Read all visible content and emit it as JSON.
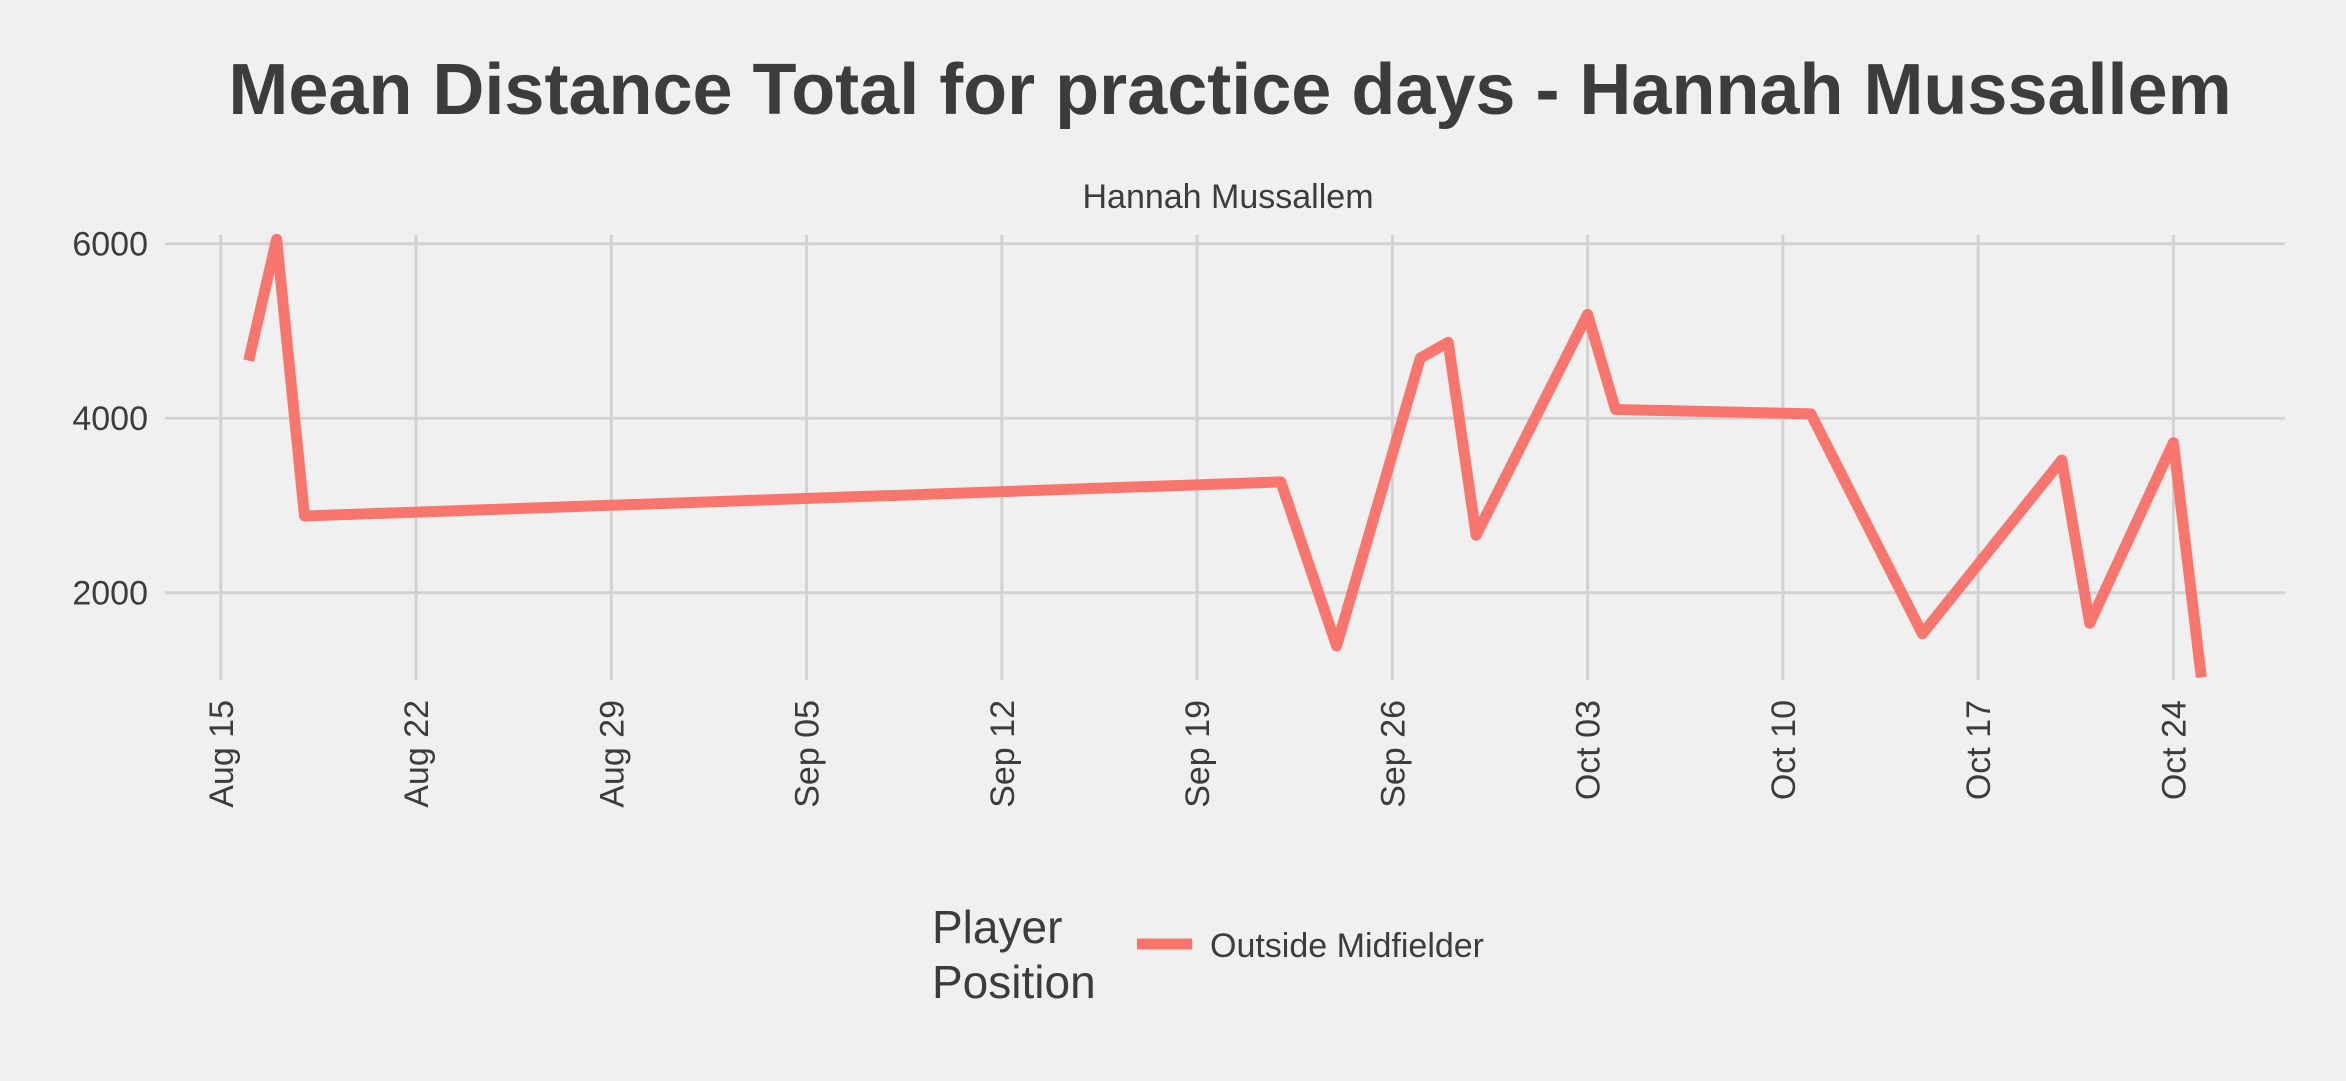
{
  "chart_data": {
    "type": "line",
    "title": "Mean Distance Total for practice days -  Hannah Mussallem",
    "subtitle": "Hannah Mussallem",
    "xlabel": "",
    "ylabel": "",
    "x_type": "date",
    "x_ticks": [
      "2022-08-15",
      "2022-08-22",
      "2022-08-29",
      "2022-09-05",
      "2022-09-12",
      "2022-09-19",
      "2022-09-26",
      "2022-10-03",
      "2022-10-10",
      "2022-10-17",
      "2022-10-24"
    ],
    "x_tick_labels": [
      "Aug 15",
      "Aug 22",
      "Aug 29",
      "Sep 05",
      "Sep 12",
      "Sep 19",
      "Sep 26",
      "Oct 03",
      "Oct 10",
      "Oct 17",
      "Oct 24"
    ],
    "y_ticks": [
      2000,
      4000,
      6000
    ],
    "y_tick_labels": [
      "2000",
      "4000",
      "6000"
    ],
    "xlim": [
      "2022-08-13",
      "2022-10-28"
    ],
    "ylim": [
      1000,
      6100
    ],
    "grid": true,
    "legend": {
      "title": [
        "Player",
        "Position"
      ],
      "placement": "bottom"
    },
    "series": [
      {
        "name": "Outside Midfielder",
        "color": "#f8766d",
        "points": [
          {
            "x": "2022-08-16",
            "y": 4660
          },
          {
            "x": "2022-08-17",
            "y": 6050
          },
          {
            "x": "2022-08-18",
            "y": 2880
          },
          {
            "x": "2022-09-22",
            "y": 3270
          },
          {
            "x": "2022-09-24",
            "y": 1390
          },
          {
            "x": "2022-09-27",
            "y": 4690
          },
          {
            "x": "2022-09-28",
            "y": 4870
          },
          {
            "x": "2022-09-29",
            "y": 2660
          },
          {
            "x": "2022-10-03",
            "y": 5190
          },
          {
            "x": "2022-10-04",
            "y": 4100
          },
          {
            "x": "2022-10-11",
            "y": 4050
          },
          {
            "x": "2022-10-15",
            "y": 1530
          },
          {
            "x": "2022-10-20",
            "y": 3520
          },
          {
            "x": "2022-10-21",
            "y": 1650
          },
          {
            "x": "2022-10-24",
            "y": 3720
          },
          {
            "x": "2022-10-25",
            "y": 1030
          }
        ]
      }
    ]
  }
}
